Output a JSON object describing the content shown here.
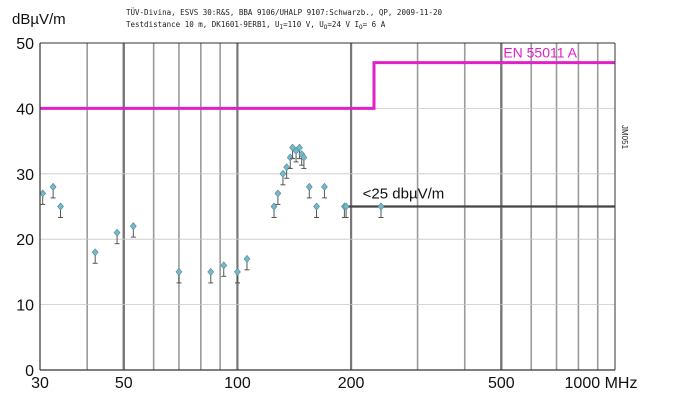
{
  "chart_data": {
    "type": "scatter",
    "ylabel": "dBµV/m",
    "header_line1": "TÜV-Divina, ESVS 30:R&S, BBA 9106/UHALP 9107:Schwarzb., QP, 2009-11-20",
    "header_line2": "Testdistance 10 m, DK1601-9ERB1, U",
    "header_sub_1": "I",
    "header_mid_1": "=110 V, U",
    "header_sub_2": "O",
    "header_mid_2": "=24 V I",
    "header_sub_3": "O",
    "header_end": "= 6 A",
    "side_label": "JM051",
    "x_scale": "log",
    "xlim": [
      30,
      1000
    ],
    "ylim": [
      0,
      50
    ],
    "x_ticks": [
      30,
      50,
      100,
      200,
      500,
      1000
    ],
    "x_tick_labels": [
      "30",
      "50",
      "100",
      "200",
      "500",
      "1000 MHz"
    ],
    "y_ticks": [
      0,
      10,
      20,
      30,
      40,
      50
    ],
    "y_tick_labels": [
      "0",
      "10",
      "20",
      "30",
      "40",
      "50"
    ],
    "limit_line": {
      "name": "EN 55011 A",
      "color": "#e020c8",
      "segments": [
        {
          "from": 30,
          "to": 230,
          "value": 40
        },
        {
          "from": 230,
          "to": 1000,
          "value": 47
        }
      ]
    },
    "reference_line": {
      "label": "<25 dbµV/m",
      "color": "#444444",
      "from": 190,
      "to": 1000,
      "value": 25
    },
    "series": [
      {
        "color": "#7ab8c8",
        "points": [
          {
            "x": 30.5,
            "y": 27.0
          },
          {
            "x": 32.5,
            "y": 28.0
          },
          {
            "x": 34.0,
            "y": 25.0
          },
          {
            "x": 42.0,
            "y": 18.0
          },
          {
            "x": 48.0,
            "y": 21.0
          },
          {
            "x": 53.0,
            "y": 22.0
          },
          {
            "x": 70.0,
            "y": 15.0
          },
          {
            "x": 85.0,
            "y": 15.0
          },
          {
            "x": 92.0,
            "y": 16.0
          },
          {
            "x": 100.0,
            "y": 15.0
          },
          {
            "x": 106.0,
            "y": 17.0
          },
          {
            "x": 125.0,
            "y": 25.0
          },
          {
            "x": 128.0,
            "y": 27.0
          },
          {
            "x": 132.0,
            "y": 30.0
          },
          {
            "x": 135.0,
            "y": 31.0
          },
          {
            "x": 138.0,
            "y": 32.5
          },
          {
            "x": 140.0,
            "y": 34.0
          },
          {
            "x": 143.0,
            "y": 33.5
          },
          {
            "x": 146.0,
            "y": 34.0
          },
          {
            "x": 148.0,
            "y": 33.0
          },
          {
            "x": 150.0,
            "y": 32.5
          },
          {
            "x": 155.0,
            "y": 28.0
          },
          {
            "x": 162.0,
            "y": 25.0
          },
          {
            "x": 170.0,
            "y": 28.0
          },
          {
            "x": 192.0,
            "y": 25.0
          },
          {
            "x": 194.0,
            "y": 25.0
          },
          {
            "x": 240.0,
            "y": 25.0
          }
        ]
      }
    ]
  }
}
